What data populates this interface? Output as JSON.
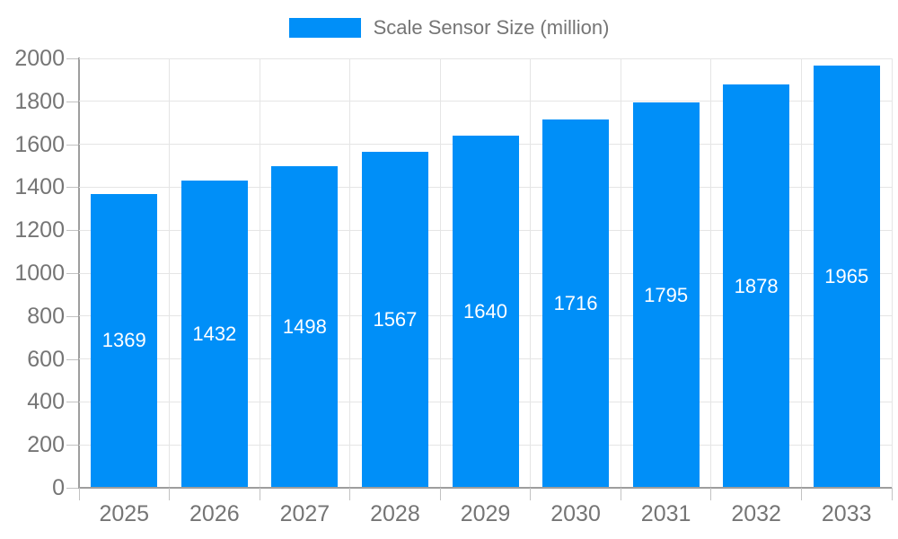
{
  "legend": {
    "label": "Scale Sensor Size (million)"
  },
  "chart_data": {
    "type": "bar",
    "title": "Scale Sensor Size (million)",
    "categories": [
      "2025",
      "2026",
      "2027",
      "2028",
      "2029",
      "2030",
      "2031",
      "2032",
      "2033"
    ],
    "series": [
      {
        "name": "Scale Sensor Size (million)",
        "values": [
          1369,
          1432,
          1498,
          1567,
          1640,
          1716,
          1795,
          1878,
          1965
        ]
      }
    ],
    "xlabel": "",
    "ylabel": "",
    "ylim": [
      0,
      2000
    ],
    "yticks": [
      0,
      200,
      400,
      600,
      800,
      1000,
      1200,
      1400,
      1600,
      1800,
      2000
    ],
    "grid": true,
    "legend_position": "top",
    "bar_labels_visible": true,
    "colors": {
      "bar": "#008FF8",
      "bar_label": "#ffffff",
      "axis_label": "#757575",
      "grid_line": "#e5e5e5",
      "axis_line": "#9e9e9e",
      "tick_mark": "#c2c2c2",
      "background": "#ffffff"
    }
  }
}
